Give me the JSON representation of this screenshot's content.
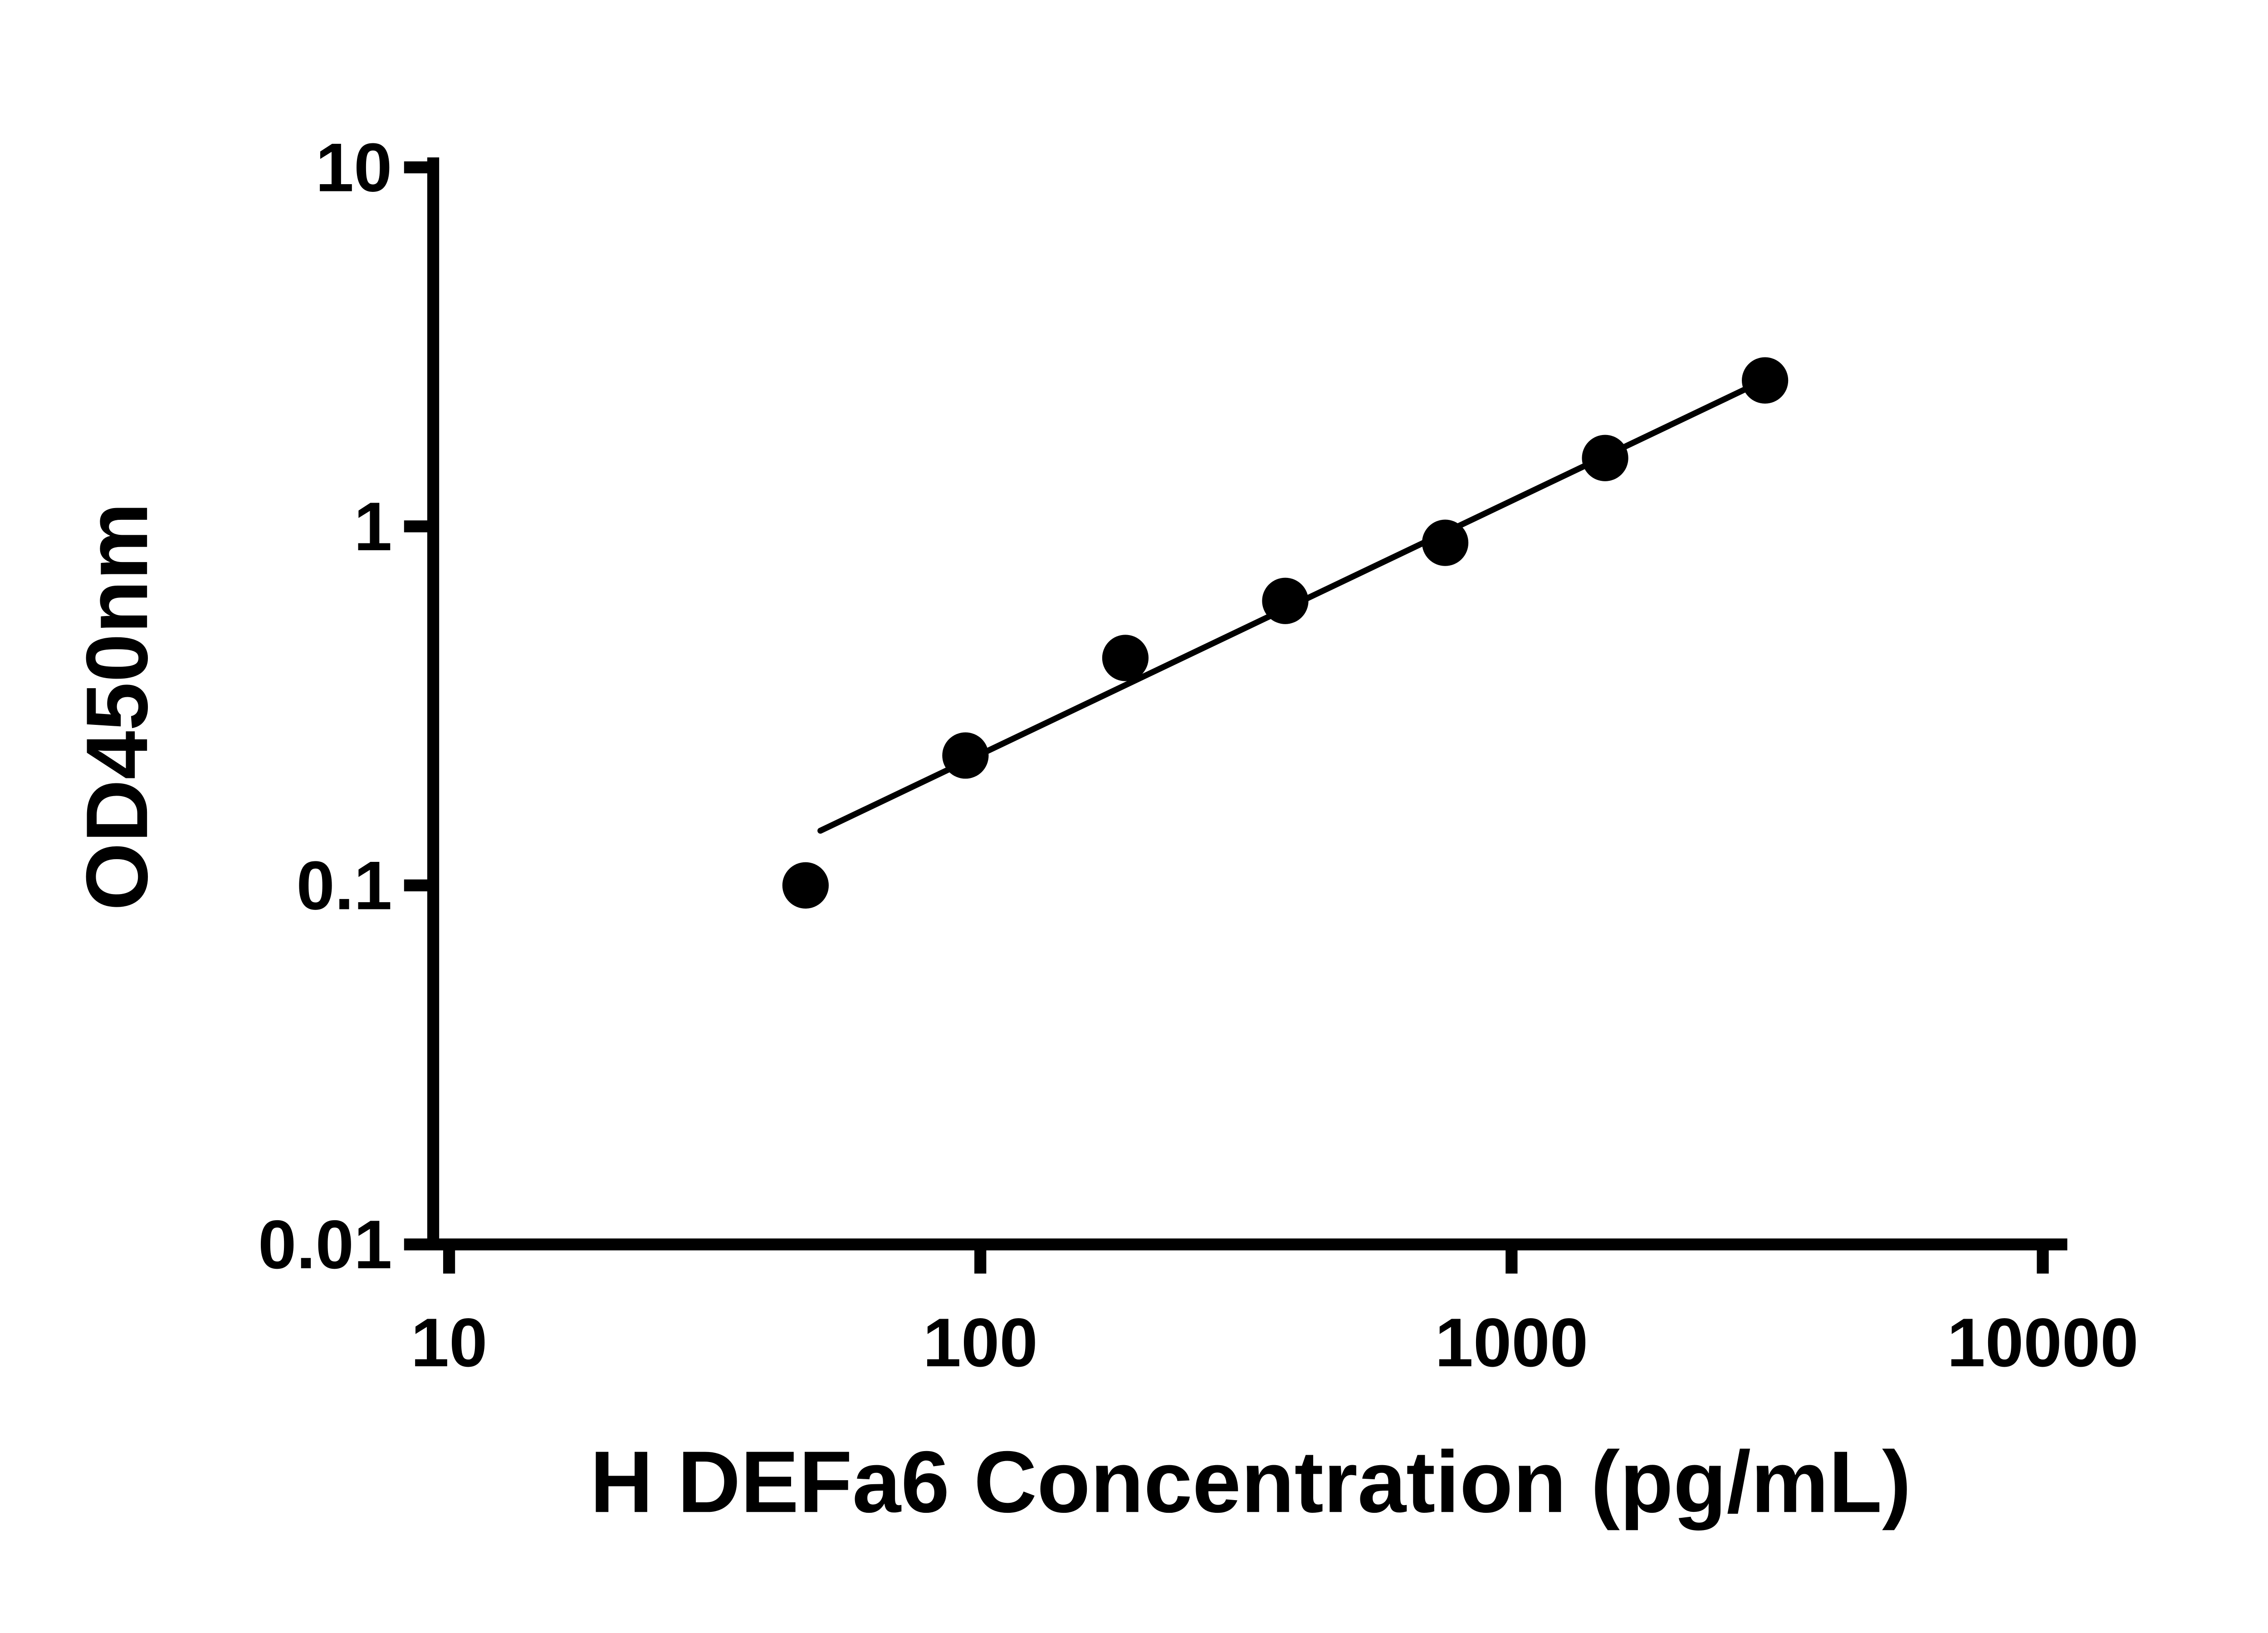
{
  "page": {
    "background_color": "#ffffff"
  },
  "chart_data": {
    "type": "scatter",
    "subtype": "log-log standard curve with trend line",
    "title": "",
    "xlabel": "H DEFa6 Concentration (pg/mL)",
    "ylabel": "OD450nm",
    "x_scale": "log10",
    "y_scale": "log10",
    "xlim": [
      10,
      10000
    ],
    "ylim": [
      0.01,
      10
    ],
    "grid": false,
    "legend": false,
    "axis_color": "#000000",
    "marker": {
      "shape": "circle",
      "color": "#000000",
      "radius_px": 17.5
    },
    "trend_color": "#000000",
    "x_ticks": [
      {
        "value": 10,
        "label": "10"
      },
      {
        "value": 100,
        "label": "100"
      },
      {
        "value": 1000,
        "label": "1000"
      },
      {
        "value": 10000,
        "label": "10000"
      }
    ],
    "y_ticks": [
      {
        "value": 0.01,
        "label": "0.01"
      },
      {
        "value": 0.1,
        "label": "0.1"
      },
      {
        "value": 1,
        "label": "1"
      },
      {
        "value": 10,
        "label": "10"
      }
    ],
    "points": [
      {
        "x": 46.88,
        "y": 0.1
      },
      {
        "x": 93.75,
        "y": 0.23
      },
      {
        "x": 187.5,
        "y": 0.43
      },
      {
        "x": 375,
        "y": 0.62
      },
      {
        "x": 750,
        "y": 0.9
      },
      {
        "x": 1500,
        "y": 1.55
      },
      {
        "x": 3000,
        "y": 2.55
      }
    ],
    "trendline": {
      "x1": 50,
      "y1": 0.142,
      "x2": 3100,
      "y2": 2.62
    }
  }
}
